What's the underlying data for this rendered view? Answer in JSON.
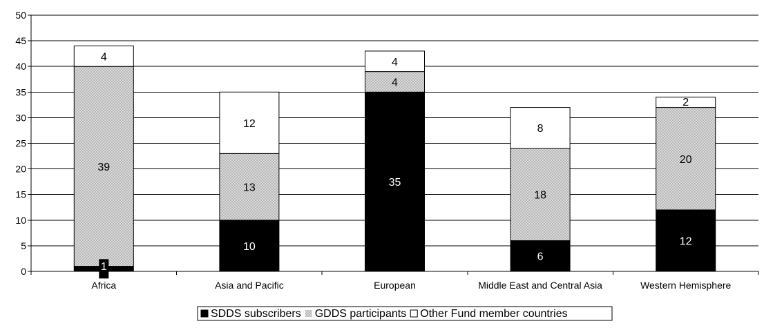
{
  "chart_data": {
    "type": "bar",
    "stacked": true,
    "categories": [
      "Africa",
      "Asia and Pacific",
      "European",
      "Middle East and Central Asia",
      "Western Hemisphere"
    ],
    "series": [
      {
        "name": "SDDS subscribers",
        "values": [
          1,
          10,
          35,
          6,
          12
        ]
      },
      {
        "name": "GDDS participants",
        "values": [
          39,
          13,
          4,
          18,
          20
        ]
      },
      {
        "name": "Other Fund member countries",
        "values": [
          4,
          12,
          4,
          8,
          2
        ]
      }
    ],
    "y_ticks": [
      "0",
      "5",
      "10",
      "15",
      "20",
      "25",
      "30",
      "35",
      "40",
      "45",
      "50"
    ],
    "ylim": [
      0,
      50
    ],
    "grid": true,
    "legend_position": "bottom-center",
    "colors": {
      "sdds": "#000000",
      "gdds": "#d9d9d9",
      "gdds_pattern": "#b3b3b3",
      "other": "#ffffff",
      "border": "#000000",
      "grid": "#000000"
    }
  }
}
